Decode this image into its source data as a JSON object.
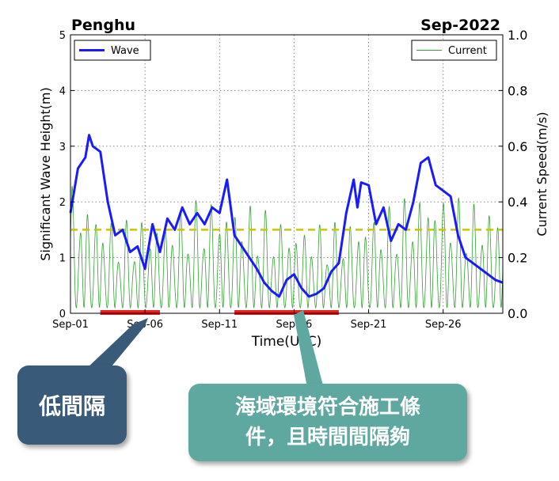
{
  "chart_data": {
    "type": "line",
    "title_left": "Penghu",
    "title_right": "Sep-2022",
    "xlabel": "Time(UTC)",
    "ylabel_left": "Significant Wave Height(m)",
    "ylabel_right": "Current Speed(m/s)",
    "x_range": [
      "2022-09-01",
      "2022-09-30"
    ],
    "ylim_left": [
      0,
      5
    ],
    "ylim_right": [
      0.0,
      1.0
    ],
    "x_ticks": [
      "Sep-01",
      "Sep-06",
      "Sep-11",
      "Sep-16",
      "Sep-21",
      "Sep-26"
    ],
    "y_ticks_left": [
      "0",
      "1",
      "2",
      "3",
      "4",
      "5"
    ],
    "y_ticks_right": [
      "0.0",
      "0.2",
      "0.4",
      "0.6",
      "0.8",
      "1.0"
    ],
    "grid": true,
    "legend_wave": "Wave",
    "legend_current": "Current",
    "threshold_line": {
      "value_m": 1.5,
      "color": "#c8c800"
    },
    "highlight_periods": [
      {
        "start": "2022-09-03",
        "end": "2022-09-07",
        "color": "#e82020"
      },
      {
        "start": "2022-09-12",
        "end": "2022-09-19",
        "color": "#e82020"
      }
    ],
    "series": [
      {
        "name": "Wave",
        "axis": "left",
        "color": "#1a1aff",
        "x": [
          "2022-09-01",
          "2022-09-01T12",
          "2022-09-02",
          "2022-09-02T06",
          "2022-09-02T12",
          "2022-09-03",
          "2022-09-03T12",
          "2022-09-04",
          "2022-09-04T12",
          "2022-09-05",
          "2022-09-05T12",
          "2022-09-06",
          "2022-09-06T12",
          "2022-09-07",
          "2022-09-07T12",
          "2022-09-08",
          "2022-09-08T12",
          "2022-09-09",
          "2022-09-09T12",
          "2022-09-10",
          "2022-09-10T12",
          "2022-09-11",
          "2022-09-11T12",
          "2022-09-12",
          "2022-09-12T12",
          "2022-09-13",
          "2022-09-13T12",
          "2022-09-14",
          "2022-09-14T12",
          "2022-09-15",
          "2022-09-15T12",
          "2022-09-16",
          "2022-09-16T12",
          "2022-09-17",
          "2022-09-17T12",
          "2022-09-18",
          "2022-09-18T12",
          "2022-09-19",
          "2022-09-19T12",
          "2022-09-20",
          "2022-09-20T06",
          "2022-09-20T12",
          "2022-09-21",
          "2022-09-21T12",
          "2022-09-22",
          "2022-09-22T12",
          "2022-09-23",
          "2022-09-23T12",
          "2022-09-24",
          "2022-09-24T12",
          "2022-09-25",
          "2022-09-25T12",
          "2022-09-26",
          "2022-09-26T12",
          "2022-09-27",
          "2022-09-27T12",
          "2022-09-28",
          "2022-09-28T12",
          "2022-09-29",
          "2022-09-29T12",
          "2022-09-30"
        ],
        "values": [
          1.8,
          2.6,
          2.8,
          3.2,
          3.0,
          2.9,
          2.0,
          1.4,
          1.5,
          1.1,
          1.2,
          0.8,
          1.6,
          1.1,
          1.7,
          1.5,
          1.9,
          1.6,
          1.8,
          1.6,
          1.9,
          1.8,
          2.4,
          1.4,
          1.2,
          1.0,
          0.8,
          0.55,
          0.4,
          0.3,
          0.6,
          0.7,
          0.45,
          0.3,
          0.35,
          0.45,
          0.75,
          0.9,
          1.8,
          2.4,
          1.9,
          2.35,
          2.3,
          1.6,
          1.9,
          1.3,
          1.6,
          1.5,
          2.0,
          2.7,
          2.8,
          2.3,
          2.2,
          2.1,
          1.4,
          1.0,
          0.9,
          0.8,
          0.7,
          0.6,
          0.55
        ]
      },
      {
        "name": "Current",
        "axis": "right",
        "color": "#33a033",
        "x": [
          "2022-09-01",
          "2022-09-04",
          "2022-09-07",
          "2022-09-10",
          "2022-09-13",
          "2022-09-16",
          "2022-09-19",
          "2022-09-22",
          "2022-09-25",
          "2022-09-28",
          "2022-09-30"
        ],
        "values_max": [
          0.48,
          0.33,
          0.35,
          0.42,
          0.4,
          0.32,
          0.33,
          0.38,
          0.46,
          0.4,
          0.4
        ],
        "values_min": [
          0.02,
          0.02,
          0.02,
          0.02,
          0.02,
          0.02,
          0.02,
          0.02,
          0.02,
          0.02,
          0.02
        ],
        "cycles_per_day": 1.93
      }
    ]
  },
  "callouts": {
    "low_interval": "低間隔",
    "suitable_line1": "海域環境符合施工條",
    "suitable_line2": "件，且時間間隔夠"
  }
}
